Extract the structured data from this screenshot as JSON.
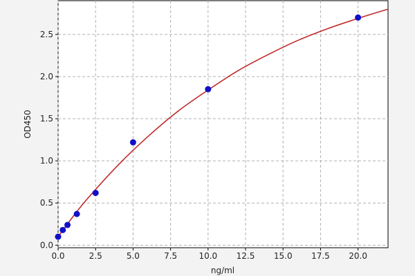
{
  "chart_data": {
    "type": "scatter",
    "title": "",
    "xlabel": "ng/ml",
    "ylabel": "OD450",
    "xlim": [
      0,
      22
    ],
    "ylim": [
      -0.03,
      2.9
    ],
    "grid": true,
    "legend": "none",
    "x_ticks": [
      "0.0",
      "2.5",
      "5.0",
      "7.5",
      "10.0",
      "12.5",
      "15.0",
      "17.5",
      "20.0"
    ],
    "y_ticks": [
      "0.0",
      "0.5",
      "1.0",
      "1.5",
      "2.0",
      "2.5"
    ],
    "points": {
      "x": [
        0,
        0.3125,
        0.625,
        1.25,
        2.5,
        5,
        10,
        20
      ],
      "y": [
        0.1,
        0.18,
        0.24,
        0.37,
        0.62,
        1.22,
        1.85,
        2.7
      ],
      "color": "#1010c8"
    },
    "fit_curve": {
      "x": [
        0,
        1,
        2,
        4,
        6,
        8,
        10,
        12,
        14,
        16,
        18,
        20,
        22
      ],
      "y": [
        0.1,
        0.34,
        0.56,
        0.95,
        1.29,
        1.59,
        1.84,
        2.07,
        2.26,
        2.43,
        2.57,
        2.69,
        2.8
      ],
      "color": "#c0282a"
    }
  }
}
